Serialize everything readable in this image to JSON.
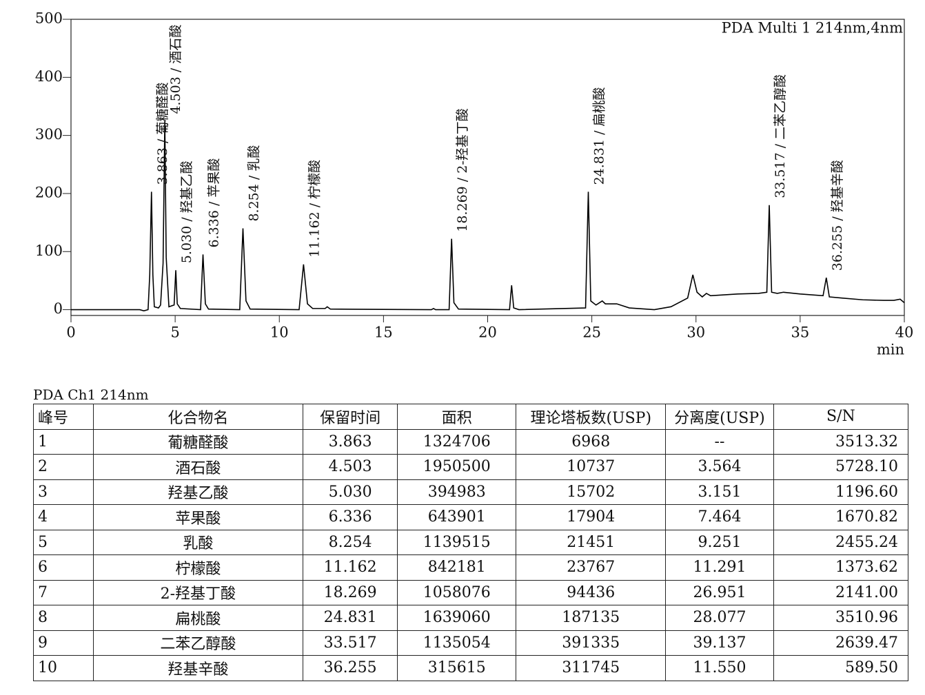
{
  "chart_data": {
    "type": "line",
    "title": "PDA Multi 1 214nm,4nm",
    "xlabel": "min",
    "xlim": [
      0,
      40
    ],
    "ylim": [
      -10,
      500
    ],
    "xticks": [
      0,
      5,
      10,
      15,
      20,
      25,
      30,
      35,
      40
    ],
    "yticks": [
      0,
      100,
      200,
      300,
      400,
      500
    ],
    "grid": false,
    "color": "#000000",
    "x": [
      0,
      3.3,
      3.5,
      3.7,
      3.78,
      3.863,
      3.93,
      4.0,
      4.2,
      4.3,
      4.42,
      4.503,
      4.57,
      4.7,
      4.95,
      5.03,
      5.1,
      5.25,
      6.22,
      6.336,
      6.45,
      6.6,
      8.1,
      8.254,
      8.4,
      8.6,
      10.95,
      11.162,
      11.35,
      11.6,
      12.2,
      12.3,
      12.45,
      17.3,
      17.4,
      17.5,
      18.15,
      18.269,
      18.38,
      18.6,
      21.05,
      21.15,
      21.25,
      21.5,
      24.7,
      24.831,
      24.95,
      25.2,
      25.5,
      25.65,
      26.2,
      26.8,
      28,
      28.8,
      29.6,
      29.85,
      30.05,
      30.3,
      30.5,
      30.7,
      32,
      33,
      33.4,
      33.517,
      33.63,
      33.9,
      34.2,
      35,
      36.1,
      36.255,
      36.4,
      37,
      38,
      39,
      39.5,
      39.8,
      40
    ],
    "values": [
      0,
      0,
      -2,
      0,
      60,
      203,
      60,
      5,
      3,
      8,
      80,
      325,
      90,
      5,
      8,
      68,
      10,
      2,
      0,
      95,
      10,
      1,
      0,
      140,
      15,
      1,
      0,
      78,
      10,
      2,
      2,
      5,
      1,
      0,
      2,
      0,
      0,
      122,
      12,
      1,
      0,
      42,
      3,
      0,
      3,
      203,
      15,
      8,
      15,
      10,
      10,
      3,
      0,
      5,
      20,
      60,
      30,
      22,
      28,
      24,
      27,
      28,
      30,
      180,
      30,
      28,
      30,
      27,
      24,
      55,
      22,
      20,
      17,
      16,
      16,
      18,
      12
    ],
    "annotations": [
      {
        "x": 3.863,
        "text": "3.863 / 葡糖醛酸"
      },
      {
        "x": 4.503,
        "text": "4.503 / 酒石酸"
      },
      {
        "x": 5.03,
        "text": "5.030 / 羟基乙酸"
      },
      {
        "x": 6.336,
        "text": "6.336 / 苹果酸"
      },
      {
        "x": 8.254,
        "text": "8.254 / 乳酸"
      },
      {
        "x": 11.162,
        "text": "11.162 / 柠檬酸"
      },
      {
        "x": 18.269,
        "text": "18.269 / 2-羟基丁酸"
      },
      {
        "x": 24.831,
        "text": "24.831 / 扁桃酸"
      },
      {
        "x": 33.517,
        "text": "33.517 / 二苯乙醇酸"
      },
      {
        "x": 36.255,
        "text": "36.255 / 羟基辛酸"
      }
    ]
  },
  "table": {
    "caption": "PDA Ch1 214nm",
    "headers": [
      "峰号",
      "化合物名",
      "保留时间",
      "面积",
      "理论塔板数(USP)",
      "分离度(USP)",
      "S/N"
    ],
    "rows": [
      [
        "1",
        "葡糖醛酸",
        "3.863",
        "1324706",
        "6968",
        "--",
        "3513.32"
      ],
      [
        "2",
        "酒石酸",
        "4.503",
        "1950500",
        "10737",
        "3.564",
        "5728.10"
      ],
      [
        "3",
        "羟基乙酸",
        "5.030",
        "394983",
        "15702",
        "3.151",
        "1196.60"
      ],
      [
        "4",
        "苹果酸",
        "6.336",
        "643901",
        "17904",
        "7.464",
        "1670.82"
      ],
      [
        "5",
        "乳酸",
        "8.254",
        "1139515",
        "21451",
        "9.251",
        "2455.24"
      ],
      [
        "6",
        "柠檬酸",
        "11.162",
        "842181",
        "23767",
        "11.291",
        "1373.62"
      ],
      [
        "7",
        "2-羟基丁酸",
        "18.269",
        "1058076",
        "94436",
        "26.951",
        "2141.00"
      ],
      [
        "8",
        "扁桃酸",
        "24.831",
        "1639060",
        "187135",
        "28.077",
        "3510.96"
      ],
      [
        "9",
        "二苯乙醇酸",
        "33.517",
        "1135054",
        "391335",
        "39.137",
        "2639.47"
      ],
      [
        "10",
        "羟基辛酸",
        "36.255",
        "315615",
        "311745",
        "11.550",
        "589.50"
      ]
    ]
  }
}
